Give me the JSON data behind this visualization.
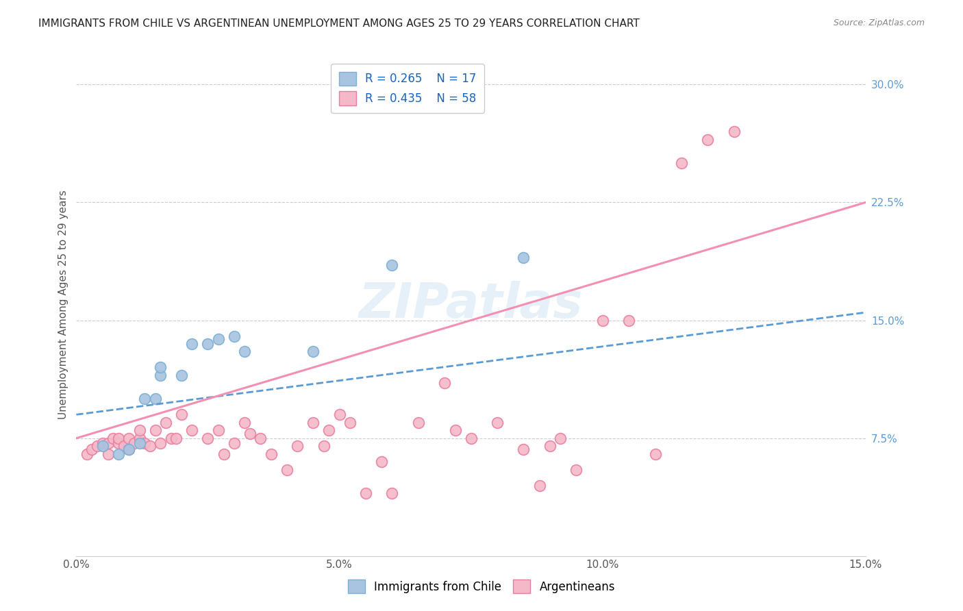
{
  "title": "IMMIGRANTS FROM CHILE VS ARGENTINEAN UNEMPLOYMENT AMONG AGES 25 TO 29 YEARS CORRELATION CHART",
  "source": "Source: ZipAtlas.com",
  "ylabel": "Unemployment Among Ages 25 to 29 years",
  "ytick_labels": [
    "7.5%",
    "15.0%",
    "22.5%",
    "30.0%"
  ],
  "ytick_values": [
    0.075,
    0.15,
    0.225,
    0.3
  ],
  "xlim": [
    0.0,
    0.15
  ],
  "ylim": [
    0.0,
    0.32
  ],
  "legend_r1": "R = 0.265",
  "legend_n1": "N = 17",
  "legend_r2": "R = 0.435",
  "legend_n2": "N = 58",
  "watermark": "ZIPatlas",
  "chile_color": "#a8c4e0",
  "chile_edge": "#7bafd4",
  "arg_color": "#f4b8c8",
  "arg_edge": "#e87fa0",
  "line_chile_color": "#5b9bd5",
  "line_arg_color": "#f48fb1",
  "chile_scatter_x": [
    0.005,
    0.008,
    0.01,
    0.012,
    0.013,
    0.015,
    0.016,
    0.016,
    0.02,
    0.022,
    0.025,
    0.027,
    0.03,
    0.032,
    0.045,
    0.06,
    0.085
  ],
  "chile_scatter_y": [
    0.07,
    0.065,
    0.068,
    0.072,
    0.1,
    0.1,
    0.115,
    0.12,
    0.115,
    0.135,
    0.135,
    0.138,
    0.14,
    0.13,
    0.13,
    0.185,
    0.19
  ],
  "arg_scatter_x": [
    0.002,
    0.003,
    0.004,
    0.005,
    0.006,
    0.006,
    0.007,
    0.008,
    0.008,
    0.009,
    0.01,
    0.01,
    0.011,
    0.012,
    0.012,
    0.013,
    0.014,
    0.015,
    0.016,
    0.017,
    0.018,
    0.019,
    0.02,
    0.022,
    0.025,
    0.027,
    0.028,
    0.03,
    0.032,
    0.033,
    0.035,
    0.037,
    0.04,
    0.042,
    0.045,
    0.047,
    0.048,
    0.05,
    0.052,
    0.055,
    0.058,
    0.06,
    0.065,
    0.07,
    0.072,
    0.075,
    0.08,
    0.085,
    0.088,
    0.09,
    0.092,
    0.095,
    0.1,
    0.105,
    0.11,
    0.115,
    0.12,
    0.125
  ],
  "arg_scatter_y": [
    0.065,
    0.068,
    0.07,
    0.072,
    0.065,
    0.072,
    0.075,
    0.072,
    0.075,
    0.07,
    0.068,
    0.075,
    0.072,
    0.075,
    0.08,
    0.072,
    0.07,
    0.08,
    0.072,
    0.085,
    0.075,
    0.075,
    0.09,
    0.08,
    0.075,
    0.08,
    0.065,
    0.072,
    0.085,
    0.078,
    0.075,
    0.065,
    0.055,
    0.07,
    0.085,
    0.07,
    0.08,
    0.09,
    0.085,
    0.04,
    0.06,
    0.04,
    0.085,
    0.11,
    0.08,
    0.075,
    0.085,
    0.068,
    0.045,
    0.07,
    0.075,
    0.055,
    0.15,
    0.15,
    0.065,
    0.25,
    0.265,
    0.27
  ],
  "chile_line_x": [
    0.0,
    0.15
  ],
  "chile_line_y": [
    0.09,
    0.155
  ],
  "arg_line_x": [
    0.0,
    0.15
  ],
  "arg_line_y": [
    0.075,
    0.225
  ],
  "bottom_legend_labels": [
    "Immigrants from Chile",
    "Argentineans"
  ]
}
